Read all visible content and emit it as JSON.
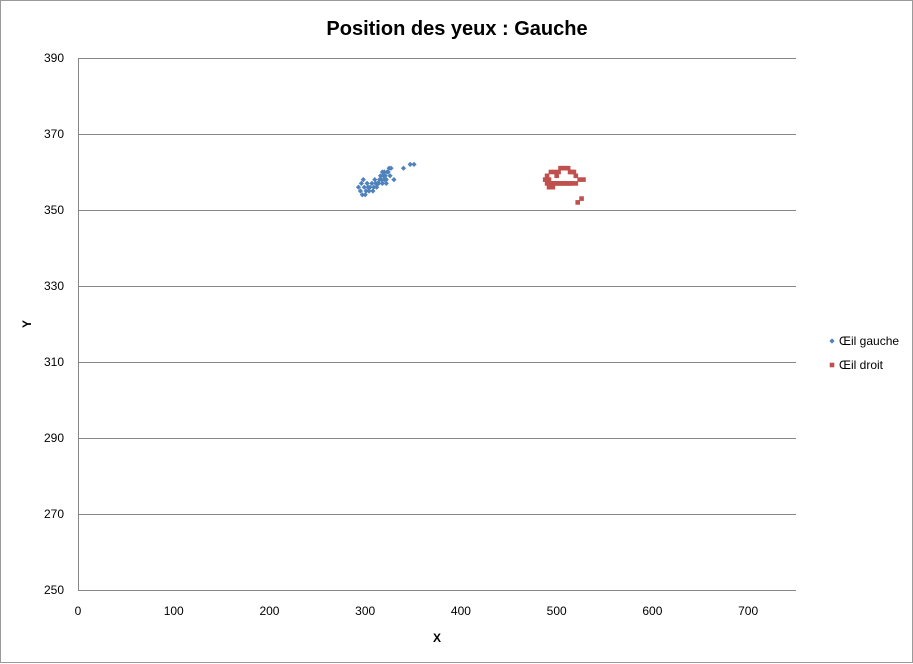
{
  "chart_data": {
    "type": "scatter",
    "title": "Position des yeux :  Gauche",
    "xlabel": "X",
    "ylabel": "Y",
    "xlim": [
      0,
      750
    ],
    "ylim": [
      250,
      390
    ],
    "xticks": [
      0,
      100,
      200,
      300,
      400,
      500,
      600,
      700
    ],
    "yticks": [
      250,
      270,
      290,
      310,
      330,
      350,
      370,
      390
    ],
    "grid": "horizontal",
    "legend": "right",
    "series": [
      {
        "name": "Œil gauche",
        "color": "#4f81bd",
        "marker": "diamond",
        "points": [
          [
            293,
            356
          ],
          [
            295,
            355
          ],
          [
            297,
            354
          ],
          [
            299,
            356
          ],
          [
            301,
            355
          ],
          [
            300,
            354
          ],
          [
            303,
            356
          ],
          [
            302,
            357
          ],
          [
            305,
            356
          ],
          [
            307,
            357
          ],
          [
            309,
            356
          ],
          [
            311,
            357
          ],
          [
            310,
            358
          ],
          [
            313,
            357
          ],
          [
            315,
            358
          ],
          [
            314,
            357
          ],
          [
            317,
            358
          ],
          [
            316,
            359
          ],
          [
            319,
            359
          ],
          [
            318,
            360
          ],
          [
            321,
            359
          ],
          [
            320,
            360
          ],
          [
            323,
            360
          ],
          [
            322,
            358
          ],
          [
            325,
            361
          ],
          [
            324,
            360
          ],
          [
            327,
            361
          ],
          [
            326,
            359
          ],
          [
            312,
            356
          ],
          [
            308,
            355
          ],
          [
            296,
            357
          ],
          [
            298,
            358
          ],
          [
            330,
            358
          ],
          [
            318,
            357
          ],
          [
            340,
            361
          ],
          [
            347,
            362
          ],
          [
            351,
            362
          ],
          [
            304,
            355
          ],
          [
            320,
            358
          ],
          [
            322,
            357
          ]
        ]
      },
      {
        "name": "Œil droit",
        "color": "#c0504d",
        "marker": "square",
        "points": [
          [
            488,
            358
          ],
          [
            490,
            357
          ],
          [
            492,
            356
          ],
          [
            494,
            357
          ],
          [
            496,
            357
          ],
          [
            498,
            357
          ],
          [
            500,
            357
          ],
          [
            502,
            357
          ],
          [
            504,
            357
          ],
          [
            506,
            357
          ],
          [
            508,
            357
          ],
          [
            510,
            357
          ],
          [
            512,
            357
          ],
          [
            514,
            357
          ],
          [
            516,
            357
          ],
          [
            490,
            359
          ],
          [
            494,
            360
          ],
          [
            498,
            360
          ],
          [
            502,
            360
          ],
          [
            504,
            361
          ],
          [
            506,
            361
          ],
          [
            508,
            361
          ],
          [
            510,
            361
          ],
          [
            512,
            361
          ],
          [
            514,
            360
          ],
          [
            516,
            360
          ],
          [
            518,
            360
          ],
          [
            520,
            359
          ],
          [
            524,
            358
          ],
          [
            528,
            358
          ],
          [
            520,
            357
          ],
          [
            496,
            356
          ],
          [
            522,
            352
          ],
          [
            526,
            353
          ],
          [
            500,
            359
          ],
          [
            492,
            358
          ]
        ]
      }
    ]
  }
}
